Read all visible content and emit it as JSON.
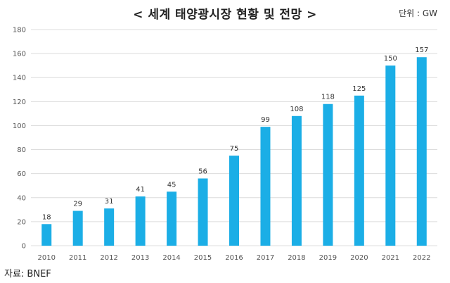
{
  "title": "< 세계 태양광시장 현황 및 전망 >",
  "unit": "단위 : GW",
  "source": "자료: BNEF",
  "colors": {
    "bar": "#1BAEE6",
    "grid": "#dcdcdc"
  },
  "chart_data": {
    "type": "bar",
    "title": "< 세계 태양광시장 현황 및 전망 >",
    "xlabel": "",
    "ylabel": "",
    "categories": [
      "2010",
      "2011",
      "2012",
      "2013",
      "2014",
      "2015",
      "2016",
      "2017",
      "2018",
      "2019",
      "2020",
      "2021",
      "2022"
    ],
    "values": [
      18,
      29,
      31,
      41,
      45,
      56,
      75,
      99,
      108,
      118,
      125,
      150,
      157
    ],
    "ylim": [
      0,
      180
    ],
    "yticks": [
      0,
      20,
      40,
      60,
      80,
      100,
      120,
      140,
      160,
      180
    ],
    "grid": true,
    "legend": "none"
  }
}
